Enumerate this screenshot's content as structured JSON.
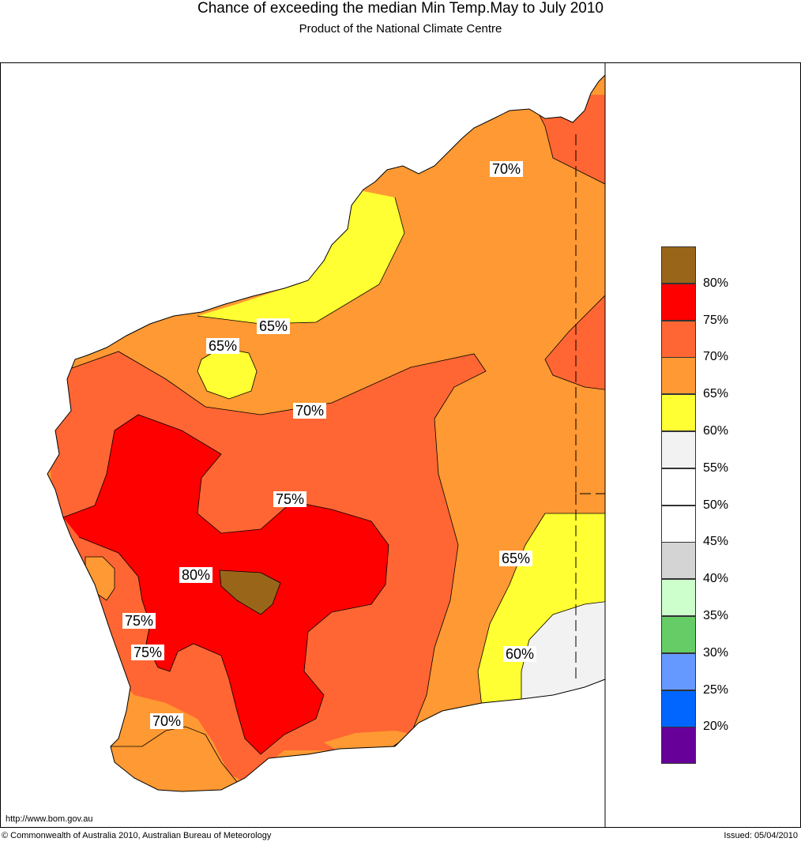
{
  "header": {
    "title": "Chance of exceeding the median Min Temp.May to July 2010",
    "subtitle": "Product of the National Climate Centre"
  },
  "footer": {
    "url": "http://www.bom.gov.au",
    "copyright": "© Commonwealth of Australia 2010, Australian Bureau of Meteorology",
    "issued": "Issued: 05/04/2010"
  },
  "legend": {
    "items": [
      {
        "label": "80%",
        "color": "#996619"
      },
      {
        "label": "75%",
        "color": "#ff0000"
      },
      {
        "label": "70%",
        "color": "#ff6633"
      },
      {
        "label": "65%",
        "color": "#ff9933"
      },
      {
        "label": "60%",
        "color": "#ffff33"
      },
      {
        "label": "55%",
        "color": "#f2f2f2"
      },
      {
        "label": "50%",
        "color": "#ffffff"
      },
      {
        "label": "45%",
        "color": "#ffffff"
      },
      {
        "label": "40%",
        "color": "#d4d4d4"
      },
      {
        "label": "35%",
        "color": "#ccffcc"
      },
      {
        "label": "30%",
        "color": "#66cc66"
      },
      {
        "label": "25%",
        "color": "#6699ff"
      },
      {
        "label": "20%",
        "color": "#0066ff"
      },
      {
        "label": "",
        "color": "#660099"
      }
    ]
  },
  "contour_labels": [
    "70%",
    "65%",
    "65%",
    "70%",
    "75%",
    "80%",
    "75%",
    "75%",
    "70%",
    "65%",
    "60%"
  ]
}
